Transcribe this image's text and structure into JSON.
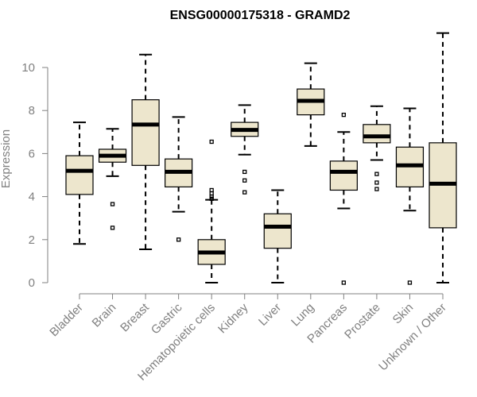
{
  "chart_data": {
    "type": "boxplot",
    "title": "ENSG00000175318 - GRAMD2",
    "xlabel": "",
    "ylabel": "Expression",
    "ylim": [
      0,
      11.5
    ],
    "yticks": [
      0,
      2,
      4,
      6,
      8,
      10
    ],
    "box_color": "#EDE6CD",
    "categories": [
      "Bladder",
      "Brain",
      "Breast",
      "Gastric",
      "Hematopoietic cells",
      "Kidney",
      "Liver",
      "Lung",
      "Pancreas",
      "Prostate",
      "Skin",
      "Unknown / Other"
    ],
    "series": [
      {
        "name": "Bladder",
        "min": 1.8,
        "q1": 4.1,
        "median": 5.2,
        "q3": 5.9,
        "max": 7.45,
        "outliers": []
      },
      {
        "name": "Brain",
        "min": 4.95,
        "q1": 5.6,
        "median": 5.9,
        "q3": 6.2,
        "max": 7.15,
        "outliers": [
          3.65,
          2.55
        ]
      },
      {
        "name": "Breast",
        "min": 1.55,
        "q1": 5.45,
        "median": 7.35,
        "q3": 8.5,
        "max": 10.6,
        "outliers": []
      },
      {
        "name": "Gastric",
        "min": 3.3,
        "q1": 4.45,
        "median": 5.15,
        "q3": 5.75,
        "max": 7.7,
        "outliers": [
          2.0
        ]
      },
      {
        "name": "Hematopoietic cells",
        "min": 0.0,
        "q1": 0.85,
        "median": 1.4,
        "q3": 2.0,
        "max": 3.85,
        "outliers": [
          6.55,
          4.3,
          4.15,
          4.0,
          3.9
        ]
      },
      {
        "name": "Kidney",
        "min": 5.95,
        "q1": 6.8,
        "median": 7.1,
        "q3": 7.45,
        "max": 8.25,
        "outliers": [
          5.15,
          4.75,
          4.2
        ]
      },
      {
        "name": "Liver",
        "min": 0.0,
        "q1": 1.6,
        "median": 2.6,
        "q3": 3.2,
        "max": 4.3,
        "outliers": []
      },
      {
        "name": "Lung",
        "min": 6.35,
        "q1": 7.8,
        "median": 8.45,
        "q3": 9.0,
        "max": 10.2,
        "outliers": []
      },
      {
        "name": "Pancreas",
        "min": 3.45,
        "q1": 4.3,
        "median": 5.15,
        "q3": 5.65,
        "max": 7.0,
        "outliers": [
          7.8,
          0.0
        ]
      },
      {
        "name": "Prostate",
        "min": 5.7,
        "q1": 6.5,
        "median": 6.8,
        "q3": 7.35,
        "max": 8.2,
        "outliers": [
          5.05,
          4.65,
          4.35
        ]
      },
      {
        "name": "Skin",
        "min": 3.35,
        "q1": 4.45,
        "median": 5.45,
        "q3": 6.3,
        "max": 8.1,
        "outliers": [
          0.0
        ]
      },
      {
        "name": "Unknown / Other",
        "min": 0.0,
        "q1": 2.55,
        "median": 4.6,
        "q3": 6.5,
        "max": 11.6,
        "outliers": []
      }
    ]
  }
}
